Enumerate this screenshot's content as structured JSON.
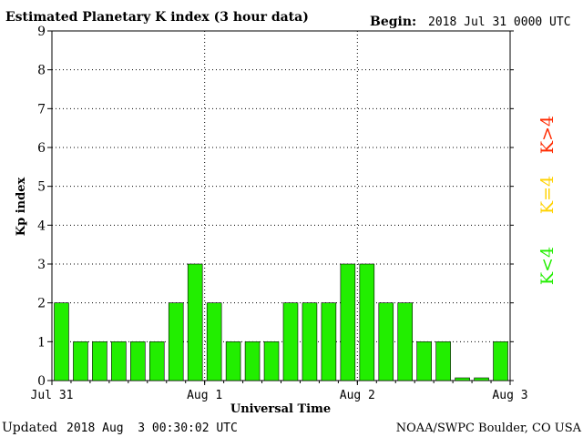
{
  "header": {
    "title": "Estimated Planetary K index (3 hour data)",
    "begin_label": "Begin:",
    "begin_value": "2018 Jul 31 0000 UTC"
  },
  "footer": {
    "updated_label": "Updated",
    "updated_value": "2018 Aug  3 00:30:02 UTC",
    "source": "NOAA/SWPC Boulder, CO USA"
  },
  "legend": {
    "high": {
      "label": "K>4",
      "color": "#ff2a00"
    },
    "mid": {
      "label": "K=4",
      "color": "#ffd200"
    },
    "low": {
      "label": "K<4",
      "color": "#22ee00"
    }
  },
  "chart_data": {
    "type": "bar",
    "xlabel": "Universal Time",
    "ylabel": "Kp index",
    "ylim": [
      0,
      9
    ],
    "y_ticks": [
      "0",
      "1",
      "2",
      "3",
      "4",
      "5",
      "6",
      "7",
      "8",
      "9"
    ],
    "x_ticks": [
      "Jul 31",
      "Aug 1",
      "Aug 2",
      "Aug 3"
    ],
    "interval_hours": 3,
    "values": [
      2,
      1,
      1,
      1,
      1,
      1,
      2,
      3,
      2,
      1,
      1,
      1,
      2,
      2,
      2,
      3,
      3,
      2,
      2,
      1,
      1,
      0.07,
      0.07,
      1
    ],
    "bar_color": "#22ee00",
    "grid": true
  }
}
